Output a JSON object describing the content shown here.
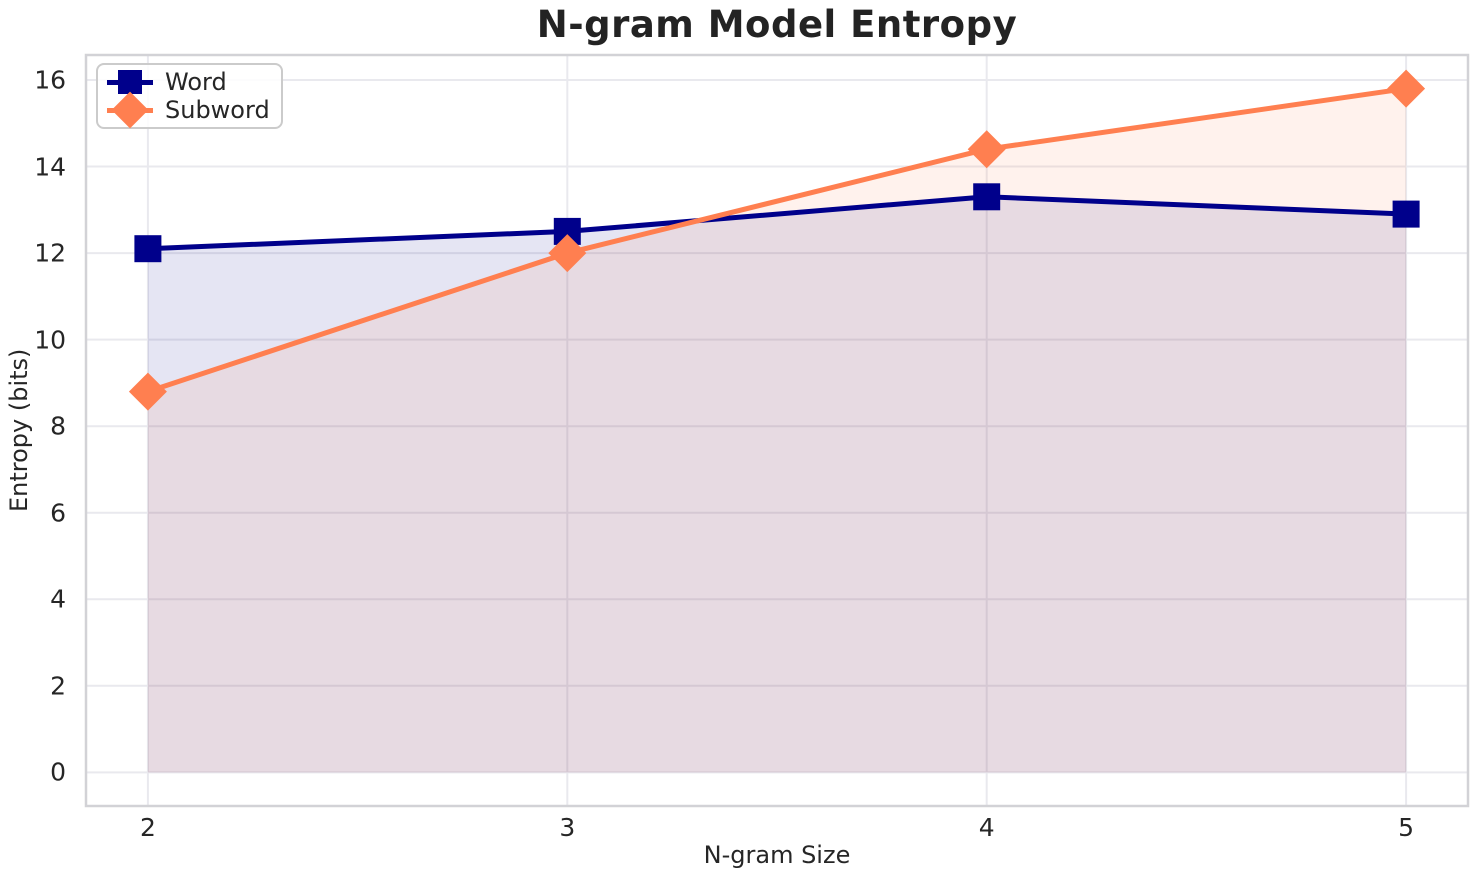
{
  "chart_data": {
    "type": "line",
    "title": "N-gram Model Entropy",
    "xlabel": "N-gram Size",
    "ylabel": "Entropy (bits)",
    "x": [
      2,
      3,
      4,
      5
    ],
    "series": [
      {
        "name": "Word",
        "color": "#00008B",
        "marker": "square",
        "values": [
          12.1,
          12.5,
          13.3,
          12.9
        ],
        "fill_to_zero": true,
        "fill_alpha": 0.1
      },
      {
        "name": "Subword",
        "color": "#FF7F50",
        "marker": "diamond",
        "values": [
          8.8,
          12.0,
          14.4,
          15.8
        ],
        "fill_to_zero": true,
        "fill_alpha": 0.1
      }
    ],
    "xlim": [
      1.85,
      5.15
    ],
    "ylim": [
      -0.8,
      16.6
    ],
    "x_ticks": [
      2,
      3,
      4,
      5
    ],
    "y_ticks": [
      0,
      2,
      4,
      6,
      8,
      10,
      12,
      14,
      16
    ],
    "grid": true,
    "legend_position": "upper-left",
    "styles": {
      "grid_color": "#e9e9ee",
      "spine_color": "#d2d2d6",
      "text_color": "#262626",
      "title_color": "#232323",
      "background": "#ffffff",
      "line_width": 5
    }
  }
}
